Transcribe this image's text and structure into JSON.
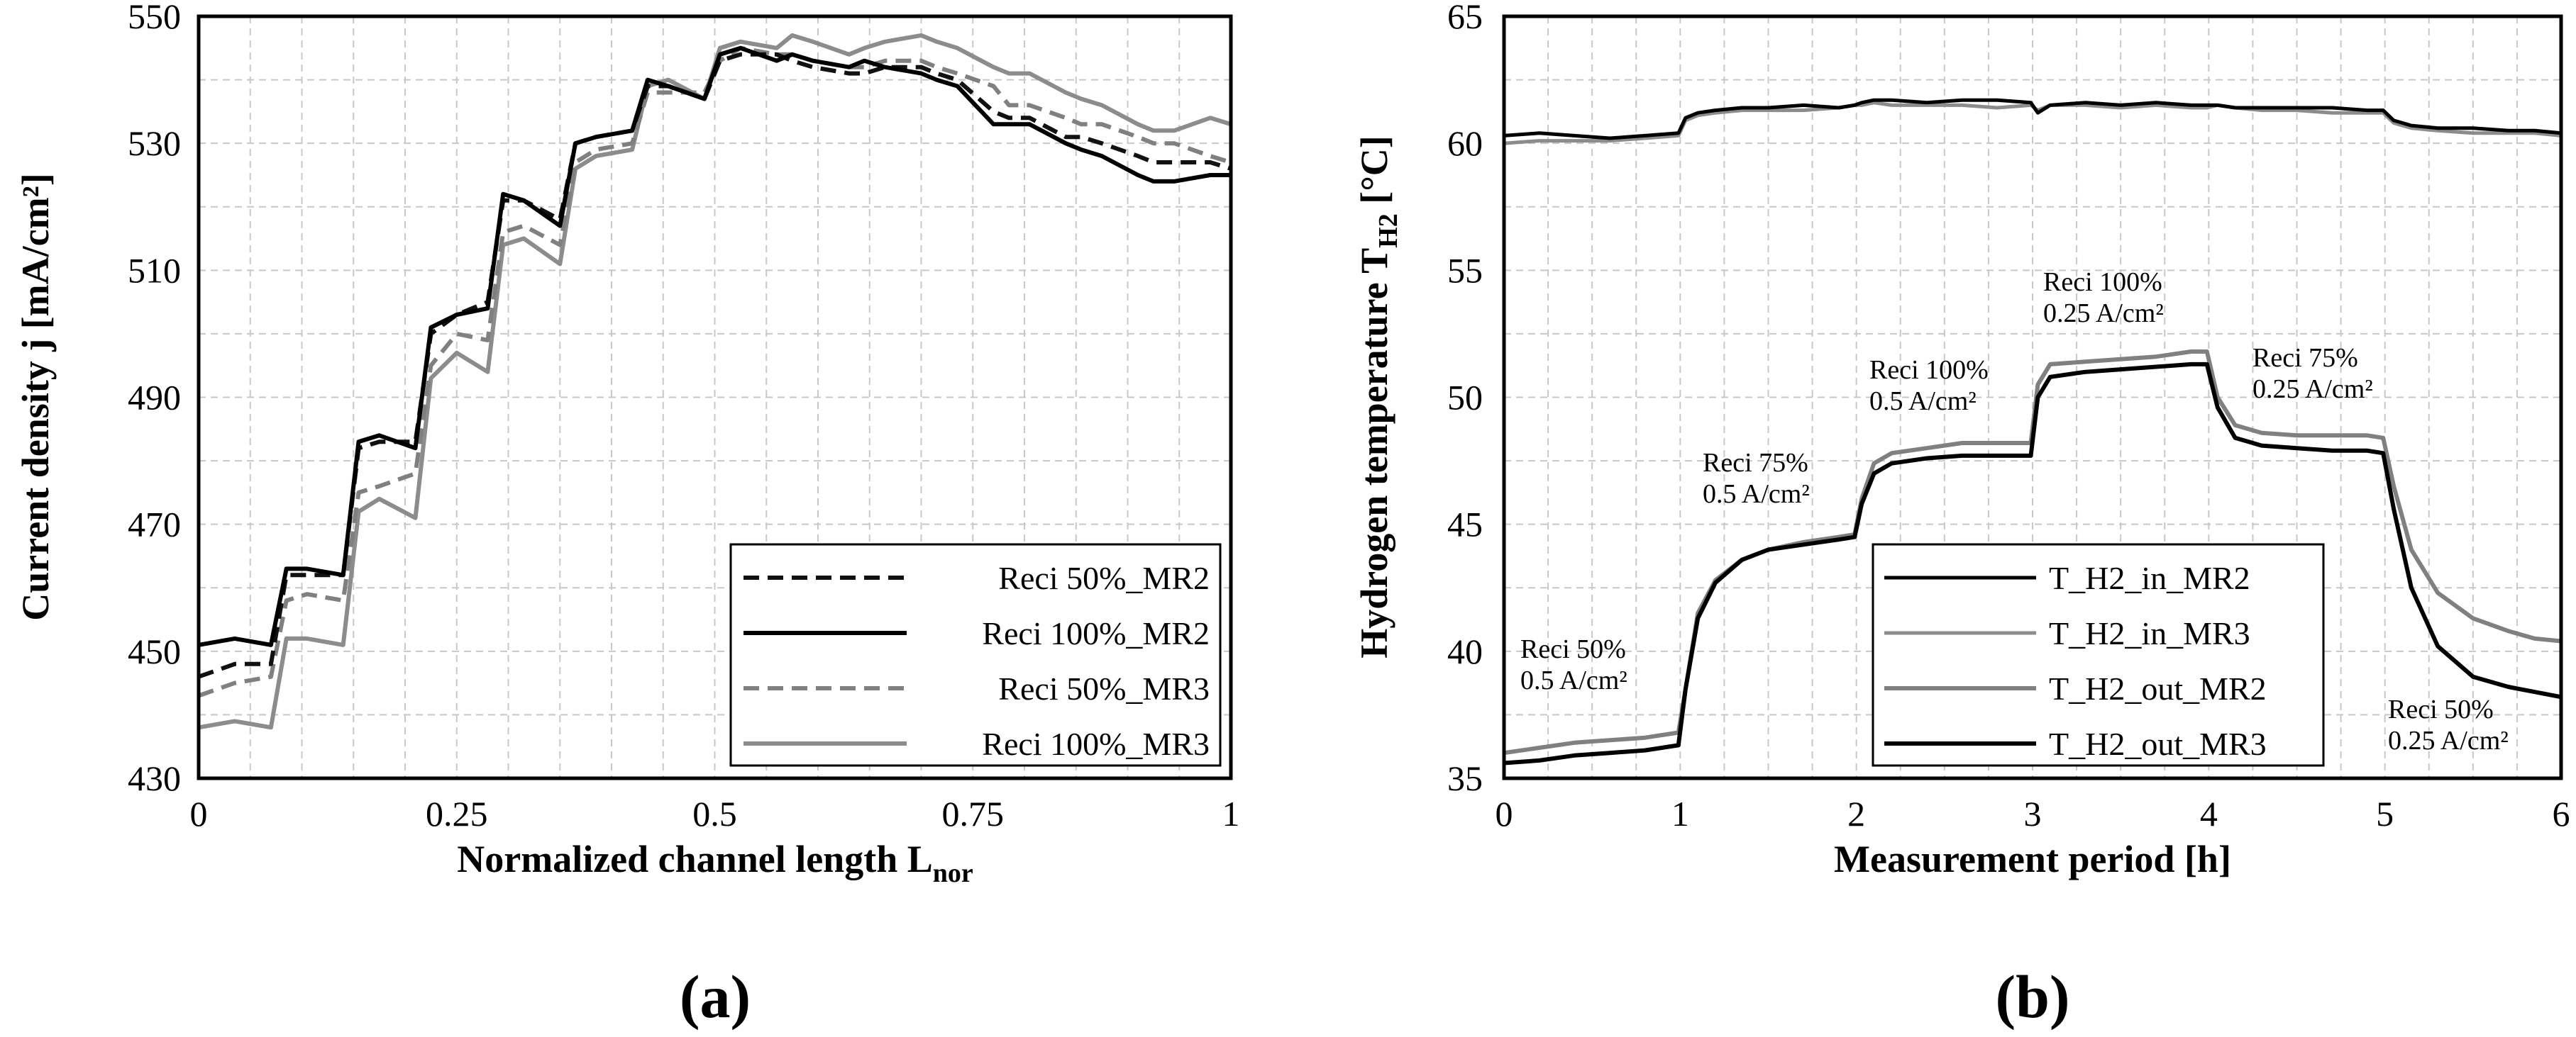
{
  "chart_data": [
    {
      "id": "a",
      "type": "line",
      "panel_label": "(a)",
      "xlabel": "Normalized channel length L",
      "xlabel_sub": "nor",
      "ylabel": "Current density j [mA/cm²]",
      "xlim": [
        0,
        1
      ],
      "ylim": [
        430,
        550
      ],
      "xticks": [
        0,
        0.25,
        0.5,
        0.75,
        1
      ],
      "xtick_labels": [
        "0",
        "0.25",
        "0.5",
        "0.75",
        "1"
      ],
      "yticks": [
        430,
        450,
        470,
        490,
        510,
        530,
        550
      ],
      "ytick_labels": [
        "430",
        "450",
        "470",
        "490",
        "510",
        "530",
        "550"
      ],
      "grid": true,
      "legend_position": "bottom-right",
      "x": [
        0,
        0.035,
        0.07,
        0.085,
        0.105,
        0.14,
        0.155,
        0.175,
        0.21,
        0.225,
        0.25,
        0.28,
        0.295,
        0.315,
        0.35,
        0.365,
        0.385,
        0.42,
        0.435,
        0.455,
        0.49,
        0.505,
        0.525,
        0.56,
        0.575,
        0.595,
        0.63,
        0.645,
        0.665,
        0.7,
        0.715,
        0.735,
        0.77,
        0.785,
        0.805,
        0.84,
        0.855,
        0.875,
        0.91,
        0.925,
        0.945,
        0.98,
        1
      ],
      "series": [
        {
          "name": "Reci 50%_MR2",
          "color": "#111111",
          "dash": "dashed",
          "values": [
            446,
            448,
            448,
            462,
            462,
            462,
            482,
            483,
            483,
            500,
            503,
            505,
            521,
            521,
            518,
            530,
            531,
            532,
            539,
            539,
            537,
            543,
            544,
            544,
            543,
            542,
            541,
            541,
            542,
            542,
            541,
            540,
            535,
            534,
            534,
            531,
            531,
            530,
            528,
            527,
            527,
            527,
            526
          ]
        },
        {
          "name": "Reci 100%_MR2",
          "color": "#000000",
          "dash": "solid",
          "values": [
            451,
            452,
            451,
            463,
            463,
            462,
            483,
            484,
            482,
            501,
            503,
            504,
            522,
            521,
            517,
            530,
            531,
            532,
            540,
            539,
            537,
            544,
            545,
            543,
            544,
            543,
            542,
            543,
            542,
            541,
            540,
            539,
            533,
            533,
            533,
            530,
            529,
            528,
            525,
            524,
            524,
            525,
            525
          ]
        },
        {
          "name": "Reci 50%_MR3",
          "color": "#808080",
          "dash": "dashed",
          "values": [
            443,
            445,
            446,
            458,
            459,
            458,
            475,
            476,
            478,
            495,
            500,
            499,
            516,
            517,
            514,
            527,
            529,
            530,
            538,
            538,
            538,
            543,
            545,
            544,
            544,
            543,
            542,
            542,
            543,
            543,
            542,
            541,
            539,
            536,
            536,
            534,
            533,
            533,
            531,
            530,
            530,
            528,
            527
          ]
        },
        {
          "name": "Reci 100%_MR3",
          "color": "#8c8c8c",
          "dash": "solid",
          "values": [
            438,
            439,
            438,
            452,
            452,
            451,
            472,
            474,
            471,
            493,
            497,
            494,
            514,
            515,
            511,
            526,
            528,
            529,
            539,
            540,
            537,
            545,
            546,
            545,
            547,
            546,
            544,
            545,
            546,
            547,
            546,
            545,
            542,
            541,
            541,
            538,
            537,
            536,
            533,
            532,
            532,
            534,
            533
          ]
        }
      ]
    },
    {
      "id": "b",
      "type": "line",
      "panel_label": "(b)",
      "xlabel": "Measurement period [h]",
      "ylabel": "Hydrogen temperature T",
      "ylabel_sub": "H2",
      "ylabel_unit": " [°C]",
      "xlim": [
        0,
        6
      ],
      "ylim": [
        35,
        65
      ],
      "xticks": [
        0,
        1,
        2,
        3,
        4,
        5,
        6
      ],
      "xtick_labels": [
        "0",
        "1",
        "2",
        "3",
        "4",
        "5",
        "6"
      ],
      "yticks": [
        35,
        40,
        45,
        50,
        55,
        60,
        65
      ],
      "ytick_labels": [
        "35",
        "40",
        "45",
        "50",
        "55",
        "60",
        "65"
      ],
      "grid": true,
      "legend_position": "bottom-center",
      "x": [
        0,
        0.2,
        0.4,
        0.6,
        0.8,
        0.99,
        1.03,
        1.1,
        1.2,
        1.35,
        1.5,
        1.7,
        1.9,
        1.99,
        2.03,
        2.1,
        2.2,
        2.4,
        2.6,
        2.8,
        2.99,
        3.03,
        3.1,
        3.3,
        3.5,
        3.7,
        3.9,
        3.99,
        4.05,
        4.15,
        4.3,
        4.5,
        4.7,
        4.9,
        4.99,
        5.05,
        5.15,
        5.3,
        5.5,
        5.7,
        5.85,
        6
      ],
      "series": [
        {
          "name": "T_H2_in_MR2",
          "color": "#000000",
          "width": 5,
          "values": [
            60.3,
            60.4,
            60.3,
            60.2,
            60.3,
            60.4,
            61.0,
            61.2,
            61.3,
            61.4,
            61.4,
            61.5,
            61.4,
            61.5,
            61.6,
            61.7,
            61.7,
            61.6,
            61.7,
            61.7,
            61.6,
            61.2,
            61.5,
            61.6,
            61.5,
            61.6,
            61.5,
            61.5,
            61.5,
            61.4,
            61.4,
            61.4,
            61.4,
            61.3,
            61.3,
            60.9,
            60.7,
            60.6,
            60.6,
            60.5,
            60.5,
            60.4
          ]
        },
        {
          "name": "T_H2_in_MR3",
          "color": "#8c8c8c",
          "width": 5,
          "values": [
            60.0,
            60.1,
            60.1,
            60.1,
            60.2,
            60.3,
            60.9,
            61.1,
            61.2,
            61.3,
            61.3,
            61.3,
            61.4,
            61.5,
            61.5,
            61.6,
            61.5,
            61.5,
            61.5,
            61.4,
            61.5,
            61.3,
            61.5,
            61.5,
            61.4,
            61.5,
            61.4,
            61.4,
            61.5,
            61.4,
            61.3,
            61.3,
            61.2,
            61.2,
            61.2,
            60.8,
            60.6,
            60.5,
            60.4,
            60.4,
            60.4,
            60.3
          ]
        },
        {
          "name": "T_H2_out_MR2",
          "color": "#808080",
          "width": 6,
          "values": [
            36.0,
            36.2,
            36.4,
            36.5,
            36.6,
            36.8,
            38.5,
            41.5,
            42.8,
            43.6,
            44.0,
            44.3,
            44.5,
            44.6,
            46.0,
            47.4,
            47.8,
            48.0,
            48.2,
            48.2,
            48.2,
            50.5,
            51.3,
            51.4,
            51.5,
            51.6,
            51.8,
            51.8,
            50.0,
            48.9,
            48.6,
            48.5,
            48.5,
            48.5,
            48.4,
            46.5,
            44.0,
            42.3,
            41.3,
            40.8,
            40.5,
            40.4
          ]
        },
        {
          "name": "T_H2_out_MR3",
          "color": "#000000",
          "width": 6,
          "values": [
            35.6,
            35.7,
            35.9,
            36.0,
            36.1,
            36.3,
            38.5,
            41.3,
            42.7,
            43.6,
            44.0,
            44.2,
            44.4,
            44.5,
            45.8,
            47.0,
            47.4,
            47.6,
            47.7,
            47.7,
            47.7,
            50.0,
            50.8,
            51.0,
            51.1,
            51.2,
            51.3,
            51.3,
            49.6,
            48.4,
            48.1,
            48.0,
            47.9,
            47.9,
            47.8,
            45.6,
            42.5,
            40.2,
            39.0,
            38.6,
            38.4,
            38.2
          ]
        }
      ],
      "annotations": [
        {
          "lines": [
            "Reci 50%",
            "0.5 A/cm²"
          ]
        },
        {
          "lines": [
            "Reci 75%",
            "0.5 A/cm²"
          ]
        },
        {
          "lines": [
            "Reci 100%",
            "0.5 A/cm²"
          ]
        },
        {
          "lines": [
            "Reci 100%",
            "0.25 A/cm²"
          ]
        },
        {
          "lines": [
            "Reci 75%",
            "0.25 A/cm²"
          ]
        },
        {
          "lines": [
            "Reci 50%",
            "0.25 A/cm²"
          ]
        }
      ]
    }
  ]
}
